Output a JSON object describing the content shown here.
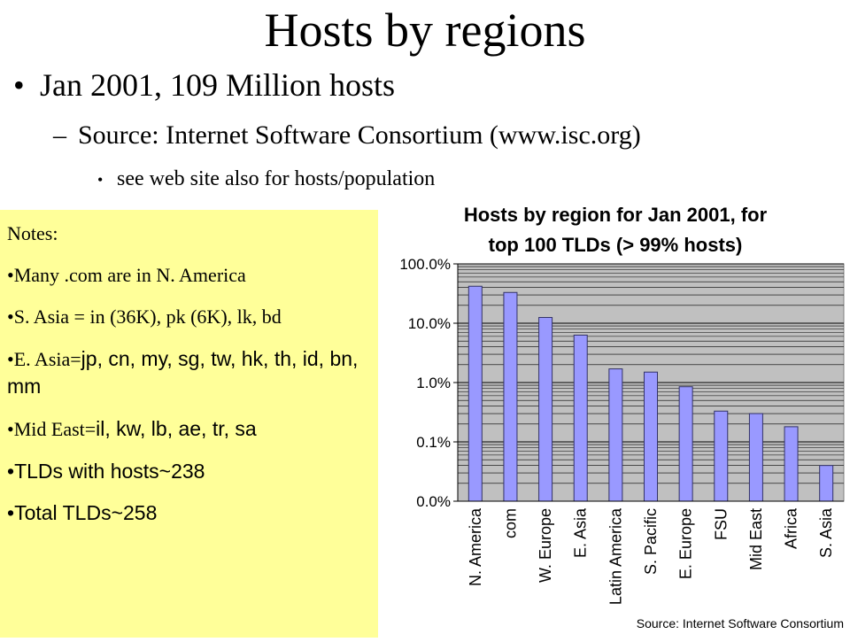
{
  "slide": {
    "title": "Hosts by regions",
    "bullet1": "Jan 2001, 109 Million hosts",
    "bullet2": "Source: Internet Software Consortium (www.isc.org)",
    "bullet3": "see web site also for hosts/population"
  },
  "notes": {
    "heading": "Notes:",
    "items": [
      {
        "bullet": "•",
        "text": "Many .com are in N. America"
      },
      {
        "bullet": "•",
        "text": "S. Asia = in (36K), pk (6K), lk, bd"
      },
      {
        "bullet": "•",
        "prefix": "E. Asia=",
        "text": "jp, cn, my, sg, tw, hk, th, id, bn, mm"
      },
      {
        "bullet": "•",
        "prefix": "Mid East=",
        "text": "il, kw, lb, ae, tr, sa"
      },
      {
        "bullet": "•",
        "text": "TLDs with hosts~238"
      },
      {
        "bullet": "•",
        "text": "Total TLDs~258"
      }
    ]
  },
  "chart_data": {
    "type": "bar",
    "title": "Hosts by region for Jan 2001, for top 100  TLDs (> 99% hosts)",
    "title_lines": [
      "Hosts by region for Jan 2001, for",
      "top 100  TLDs (> 99% hosts)"
    ],
    "source": "Source: Internet Software Consortium",
    "y_scale": "log",
    "y_ticks": [
      {
        "value": 100,
        "label": "100.0%"
      },
      {
        "value": 10,
        "label": "10.0%"
      },
      {
        "value": 1,
        "label": "1.0%"
      },
      {
        "value": 0.1,
        "label": "0.1%"
      },
      {
        "value": 0.01,
        "label": "0.0%"
      }
    ],
    "ylim": [
      0.01,
      100
    ],
    "grid": true,
    "categories": [
      "N. America",
      "com",
      "W. Europe",
      "E. Asia",
      "Latin America",
      "S. Pacific",
      "E. Europe",
      "FSU",
      "Mid East",
      "Africa",
      "S. Asia"
    ],
    "values": [
      42,
      33,
      12.5,
      6.3,
      1.7,
      1.5,
      0.85,
      0.33,
      0.3,
      0.18,
      0.04
    ],
    "colors": {
      "bar": "#9999ff",
      "bar_edge": "#333366",
      "plot_bg": "#c0c0c0",
      "grid": "#000000"
    }
  }
}
